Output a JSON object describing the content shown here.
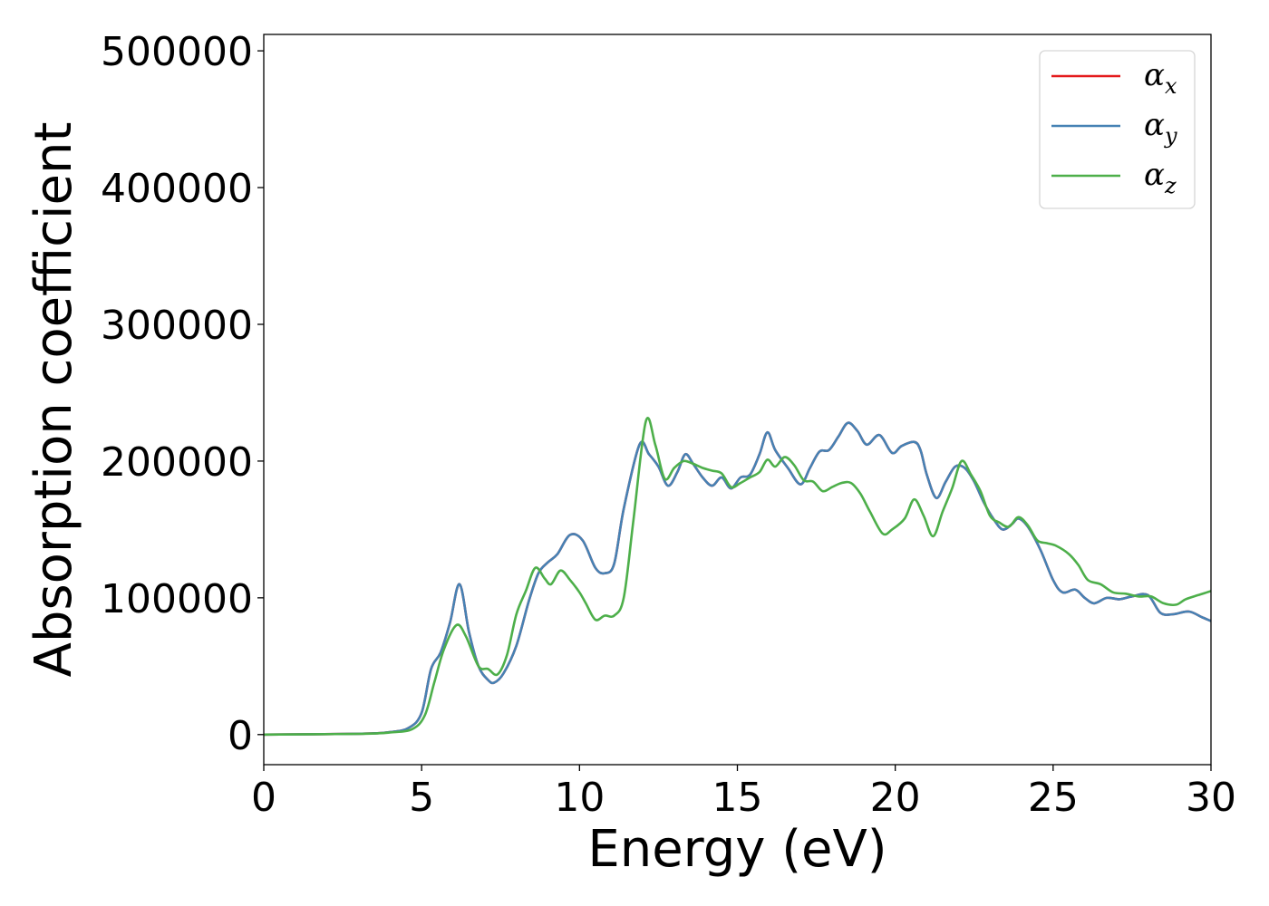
{
  "chart_data": {
    "type": "line",
    "title": "",
    "xlabel": "Energy (eV)",
    "ylabel": "Absorption coefficient",
    "xlim": [
      0,
      30
    ],
    "ylim": [
      -22000,
      512000
    ],
    "xticks": [
      0,
      5,
      10,
      15,
      20,
      25,
      30
    ],
    "yticks": [
      0,
      100000,
      200000,
      300000,
      400000,
      500000
    ],
    "grid": false,
    "legend_position": "top-right",
    "series": [
      {
        "name": "α",
        "sub": "x",
        "color": "#e41a1c",
        "points": [
          [
            0,
            0
          ],
          [
            3,
            600
          ],
          [
            4,
            1800
          ],
          [
            4.6,
            5000
          ],
          [
            5,
            16000
          ],
          [
            5.3,
            48000
          ],
          [
            5.6,
            60000
          ],
          [
            5.9,
            82000
          ],
          [
            6.2,
            110000
          ],
          [
            6.5,
            75000
          ],
          [
            6.8,
            50000
          ],
          [
            7.1,
            40000
          ],
          [
            7.3,
            38000
          ],
          [
            7.6,
            45000
          ],
          [
            8.0,
            65000
          ],
          [
            8.4,
            98000
          ],
          [
            8.7,
            118000
          ],
          [
            9.0,
            126000
          ],
          [
            9.3,
            132000
          ],
          [
            9.7,
            146000
          ],
          [
            10.1,
            142000
          ],
          [
            10.5,
            122000
          ],
          [
            10.8,
            118000
          ],
          [
            11.1,
            125000
          ],
          [
            11.4,
            165000
          ],
          [
            11.9,
            212000
          ],
          [
            12.2,
            205000
          ],
          [
            12.5,
            196000
          ],
          [
            12.8,
            182000
          ],
          [
            13.1,
            192000
          ],
          [
            13.35,
            205000
          ],
          [
            13.6,
            198000
          ],
          [
            13.9,
            188000
          ],
          [
            14.2,
            182000
          ],
          [
            14.5,
            188000
          ],
          [
            14.8,
            180000
          ],
          [
            15.1,
            188000
          ],
          [
            15.4,
            190000
          ],
          [
            15.7,
            205000
          ],
          [
            15.95,
            221000
          ],
          [
            16.2,
            208000
          ],
          [
            16.6,
            195000
          ],
          [
            17.0,
            183000
          ],
          [
            17.3,
            195000
          ],
          [
            17.6,
            207000
          ],
          [
            17.9,
            208000
          ],
          [
            18.2,
            218000
          ],
          [
            18.5,
            228000
          ],
          [
            18.8,
            222000
          ],
          [
            19.1,
            212000
          ],
          [
            19.5,
            219000
          ],
          [
            19.9,
            206000
          ],
          [
            20.2,
            211000
          ],
          [
            20.6,
            214000
          ],
          [
            20.8,
            208000
          ],
          [
            21.0,
            190000
          ],
          [
            21.3,
            173000
          ],
          [
            21.6,
            185000
          ],
          [
            21.9,
            196000
          ],
          [
            22.2,
            195000
          ],
          [
            22.5,
            185000
          ],
          [
            22.8,
            170000
          ],
          [
            23.1,
            158000
          ],
          [
            23.4,
            150000
          ],
          [
            23.7,
            154000
          ],
          [
            23.9,
            158000
          ],
          [
            24.2,
            152000
          ],
          [
            24.6,
            135000
          ],
          [
            25.0,
            113000
          ],
          [
            25.3,
            104000
          ],
          [
            25.7,
            106000
          ],
          [
            26.0,
            100000
          ],
          [
            26.3,
            96000
          ],
          [
            26.7,
            100000
          ],
          [
            27.1,
            99000
          ],
          [
            27.5,
            101000
          ],
          [
            28.0,
            102000
          ],
          [
            28.4,
            89000
          ],
          [
            28.8,
            88000
          ],
          [
            29.3,
            90000
          ],
          [
            29.7,
            86000
          ],
          [
            30,
            83000
          ]
        ]
      },
      {
        "name": "α",
        "sub": "y",
        "color": "#4682b4",
        "points": [
          [
            0,
            0
          ],
          [
            3,
            600
          ],
          [
            4,
            1800
          ],
          [
            4.6,
            5000
          ],
          [
            5,
            16000
          ],
          [
            5.3,
            48000
          ],
          [
            5.6,
            60000
          ],
          [
            5.9,
            82000
          ],
          [
            6.2,
            110000
          ],
          [
            6.5,
            75000
          ],
          [
            6.8,
            50000
          ],
          [
            7.1,
            40000
          ],
          [
            7.3,
            38000
          ],
          [
            7.6,
            45000
          ],
          [
            8.0,
            65000
          ],
          [
            8.4,
            98000
          ],
          [
            8.7,
            118000
          ],
          [
            9.0,
            126000
          ],
          [
            9.3,
            132000
          ],
          [
            9.7,
            146000
          ],
          [
            10.1,
            142000
          ],
          [
            10.5,
            122000
          ],
          [
            10.8,
            118000
          ],
          [
            11.1,
            125000
          ],
          [
            11.4,
            165000
          ],
          [
            11.9,
            212000
          ],
          [
            12.2,
            205000
          ],
          [
            12.5,
            196000
          ],
          [
            12.8,
            182000
          ],
          [
            13.1,
            192000
          ],
          [
            13.35,
            205000
          ],
          [
            13.6,
            198000
          ],
          [
            13.9,
            188000
          ],
          [
            14.2,
            182000
          ],
          [
            14.5,
            188000
          ],
          [
            14.8,
            180000
          ],
          [
            15.1,
            188000
          ],
          [
            15.4,
            190000
          ],
          [
            15.7,
            205000
          ],
          [
            15.95,
            221000
          ],
          [
            16.2,
            208000
          ],
          [
            16.6,
            195000
          ],
          [
            17.0,
            183000
          ],
          [
            17.3,
            195000
          ],
          [
            17.6,
            207000
          ],
          [
            17.9,
            208000
          ],
          [
            18.2,
            218000
          ],
          [
            18.5,
            228000
          ],
          [
            18.8,
            222000
          ],
          [
            19.1,
            212000
          ],
          [
            19.5,
            219000
          ],
          [
            19.9,
            206000
          ],
          [
            20.2,
            211000
          ],
          [
            20.6,
            214000
          ],
          [
            20.8,
            208000
          ],
          [
            21.0,
            190000
          ],
          [
            21.3,
            173000
          ],
          [
            21.6,
            185000
          ],
          [
            21.9,
            196000
          ],
          [
            22.2,
            195000
          ],
          [
            22.5,
            185000
          ],
          [
            22.8,
            170000
          ],
          [
            23.1,
            158000
          ],
          [
            23.4,
            150000
          ],
          [
            23.7,
            154000
          ],
          [
            23.9,
            158000
          ],
          [
            24.2,
            152000
          ],
          [
            24.6,
            135000
          ],
          [
            25.0,
            113000
          ],
          [
            25.3,
            104000
          ],
          [
            25.7,
            106000
          ],
          [
            26.0,
            100000
          ],
          [
            26.3,
            96000
          ],
          [
            26.7,
            100000
          ],
          [
            27.1,
            99000
          ],
          [
            27.5,
            101000
          ],
          [
            28.0,
            102000
          ],
          [
            28.4,
            89000
          ],
          [
            28.8,
            88000
          ],
          [
            29.3,
            90000
          ],
          [
            29.7,
            86000
          ],
          [
            30,
            83000
          ]
        ]
      },
      {
        "name": "α",
        "sub": "z",
        "color": "#4daf4a",
        "points": [
          [
            0,
            0
          ],
          [
            3,
            500
          ],
          [
            4,
            1500
          ],
          [
            4.7,
            4000
          ],
          [
            5.1,
            14000
          ],
          [
            5.4,
            38000
          ],
          [
            5.7,
            62000
          ],
          [
            6.1,
            80000
          ],
          [
            6.4,
            72000
          ],
          [
            6.8,
            50000
          ],
          [
            7.1,
            48000
          ],
          [
            7.4,
            44000
          ],
          [
            7.7,
            58000
          ],
          [
            8.0,
            88000
          ],
          [
            8.3,
            105000
          ],
          [
            8.6,
            122000
          ],
          [
            8.9,
            114000
          ],
          [
            9.1,
            110000
          ],
          [
            9.4,
            120000
          ],
          [
            9.7,
            113000
          ],
          [
            10.0,
            104000
          ],
          [
            10.2,
            96000
          ],
          [
            10.5,
            84000
          ],
          [
            10.8,
            87000
          ],
          [
            11.1,
            87000
          ],
          [
            11.4,
            100000
          ],
          [
            11.7,
            155000
          ],
          [
            12.1,
            229000
          ],
          [
            12.4,
            212000
          ],
          [
            12.7,
            187000
          ],
          [
            13.0,
            195000
          ],
          [
            13.3,
            200000
          ],
          [
            13.6,
            198000
          ],
          [
            13.9,
            195000
          ],
          [
            14.2,
            193000
          ],
          [
            14.5,
            191000
          ],
          [
            14.8,
            181000
          ],
          [
            15.1,
            184000
          ],
          [
            15.4,
            188000
          ],
          [
            15.7,
            192000
          ],
          [
            15.95,
            201000
          ],
          [
            16.2,
            196000
          ],
          [
            16.5,
            203000
          ],
          [
            16.8,
            197000
          ],
          [
            17.1,
            186000
          ],
          [
            17.4,
            185000
          ],
          [
            17.7,
            178000
          ],
          [
            18.0,
            181000
          ],
          [
            18.3,
            184000
          ],
          [
            18.6,
            184000
          ],
          [
            18.9,
            176000
          ],
          [
            19.2,
            163000
          ],
          [
            19.6,
            147000
          ],
          [
            19.9,
            150000
          ],
          [
            20.3,
            158000
          ],
          [
            20.6,
            172000
          ],
          [
            20.9,
            160000
          ],
          [
            21.2,
            145000
          ],
          [
            21.5,
            163000
          ],
          [
            21.8,
            180000
          ],
          [
            22.1,
            200000
          ],
          [
            22.4,
            190000
          ],
          [
            22.7,
            178000
          ],
          [
            23.0,
            160000
          ],
          [
            23.3,
            155000
          ],
          [
            23.6,
            152000
          ],
          [
            23.9,
            159000
          ],
          [
            24.2,
            153000
          ],
          [
            24.5,
            142000
          ],
          [
            24.8,
            140000
          ],
          [
            25.1,
            138000
          ],
          [
            25.5,
            132000
          ],
          [
            25.8,
            124000
          ],
          [
            26.1,
            113000
          ],
          [
            26.5,
            110000
          ],
          [
            26.9,
            104000
          ],
          [
            27.3,
            103000
          ],
          [
            27.7,
            101000
          ],
          [
            28.1,
            101000
          ],
          [
            28.5,
            96000
          ],
          [
            28.9,
            95000
          ],
          [
            29.2,
            99000
          ],
          [
            29.6,
            102000
          ],
          [
            30,
            105000
          ]
        ]
      }
    ]
  }
}
